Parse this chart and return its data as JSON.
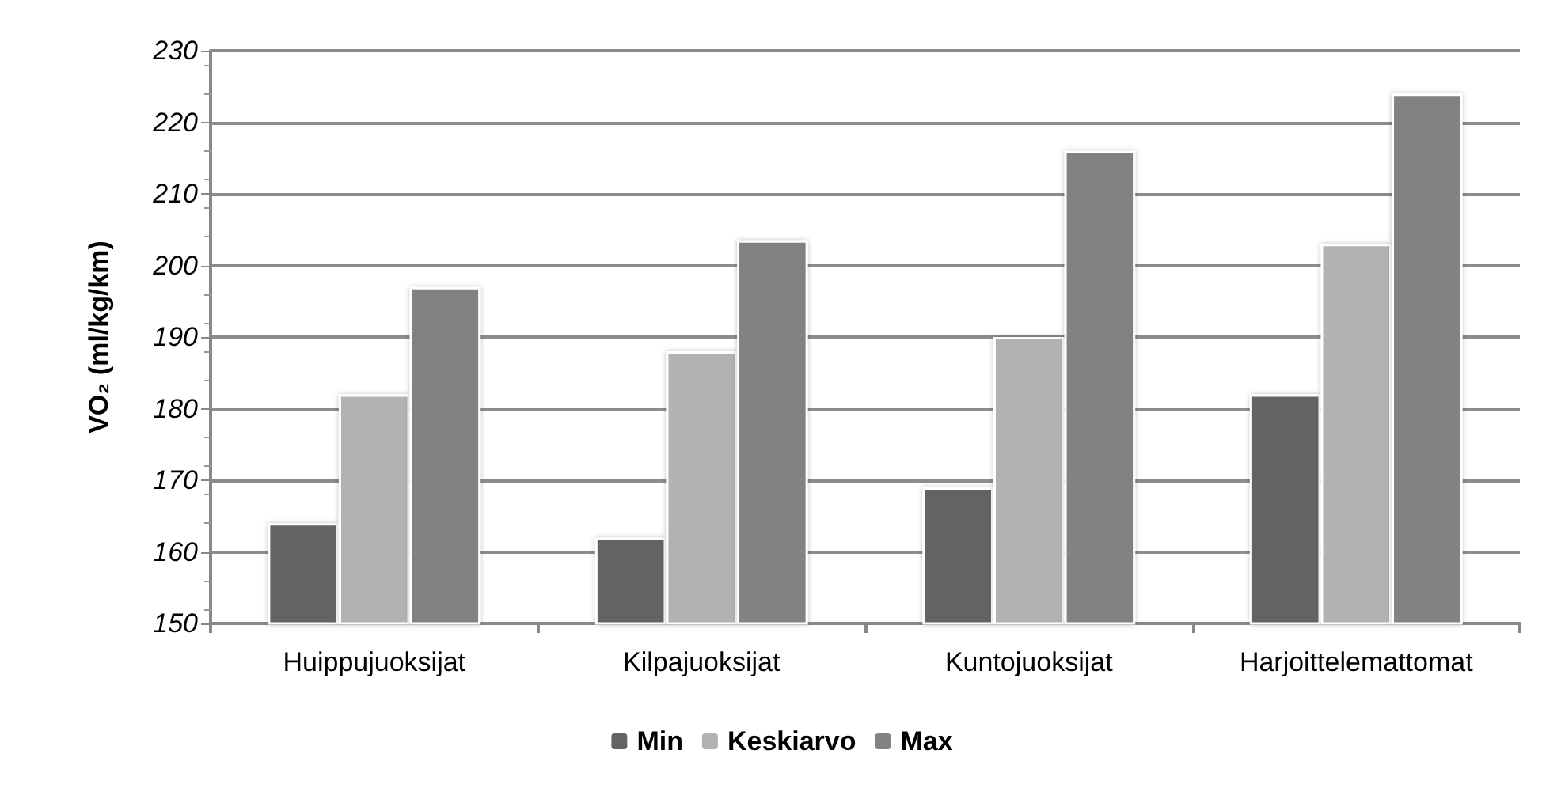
{
  "chart_data": {
    "type": "bar",
    "ylabel": "VO₂ (ml/kg/km)",
    "categories": [
      "Huippujuoksijat",
      "Kilpajuoksijat",
      "Kuntojuoksijat",
      "Harjoittelemattomat"
    ],
    "series": [
      {
        "name": "Min",
        "color": "#636363",
        "values": [
          164,
          162,
          169,
          182
        ]
      },
      {
        "name": "Keskiarvo",
        "color": "#b2b2b2",
        "values": [
          182,
          188,
          190,
          203
        ]
      },
      {
        "name": "Max",
        "color": "#828282",
        "values": [
          197,
          203.5,
          216,
          224
        ]
      }
    ],
    "ylim": [
      150,
      230
    ],
    "yticks": [
      150,
      160,
      170,
      180,
      190,
      200,
      210,
      220,
      230
    ],
    "grid": "y",
    "legend": "bottom"
  }
}
